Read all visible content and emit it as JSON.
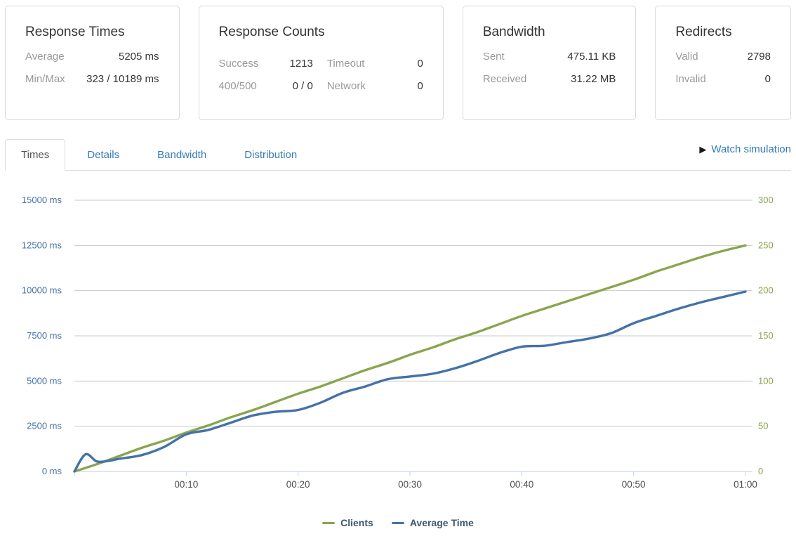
{
  "cards": {
    "response_times": {
      "title": "Response Times",
      "rows": [
        {
          "label": "Average",
          "value": "5205 ms"
        },
        {
          "label": "Min/Max",
          "value": "323 / 10189 ms"
        }
      ]
    },
    "response_counts": {
      "title": "Response Counts",
      "left_rows": [
        {
          "label": "Success",
          "value": "1213"
        },
        {
          "label": "400/500",
          "value": "0 / 0"
        }
      ],
      "right_rows": [
        {
          "label": "Timeout",
          "value": "0"
        },
        {
          "label": "Network",
          "value": "0"
        }
      ]
    },
    "bandwidth": {
      "title": "Bandwidth",
      "rows": [
        {
          "label": "Sent",
          "value": "475.11 KB"
        },
        {
          "label": "Received",
          "value": "31.22 MB"
        }
      ]
    },
    "redirects": {
      "title": "Redirects",
      "rows": [
        {
          "label": "Valid",
          "value": "2798"
        },
        {
          "label": "Invalid",
          "value": "0"
        }
      ]
    }
  },
  "tabs": {
    "items": [
      {
        "label": "Times",
        "active": true
      },
      {
        "label": "Details",
        "active": false
      },
      {
        "label": "Bandwidth",
        "active": false
      },
      {
        "label": "Distribution",
        "active": false
      }
    ],
    "watch": {
      "icon": "▶",
      "label": "Watch simulation"
    }
  },
  "chart_data": {
    "type": "line",
    "title": "",
    "x_axis": {
      "unit": "time",
      "range_minutes": [
        0,
        60
      ],
      "tick_minutes": [
        10,
        20,
        30,
        40,
        50,
        60
      ],
      "ticks": [
        "00:10",
        "00:20",
        "00:30",
        "00:40",
        "00:50",
        "01:00"
      ],
      "label_color": "#4d4d4d"
    },
    "left_axis": {
      "min": 0,
      "max": 15000,
      "tick_step": 2500,
      "tick_labels": [
        "0 ms",
        "2500 ms",
        "5000 ms",
        "7500 ms",
        "10000 ms",
        "12500 ms",
        "15000 ms"
      ],
      "label_color": "#4572a7"
    },
    "right_axis": {
      "min": 0,
      "max": 300,
      "tick_step": 50,
      "tick_labels": [
        "0",
        "50",
        "100",
        "150",
        "200",
        "250",
        "300"
      ],
      "label_color": "#89a54e"
    },
    "grid": {
      "color": "#c9c9c9",
      "baseline_color": "#c0d0e0",
      "grid_on": true
    },
    "series": [
      {
        "name": "Clients",
        "axis": "right",
        "color": "#89a54e",
        "x_minutes": [
          0,
          2,
          4,
          6,
          8,
          10,
          12,
          14,
          16,
          18,
          20,
          22,
          24,
          26,
          28,
          30,
          32,
          34,
          36,
          38,
          40,
          42,
          44,
          46,
          48,
          50,
          52,
          54,
          56,
          58,
          60
        ],
        "values": [
          0,
          8,
          17,
          26,
          34,
          43,
          51,
          60,
          68,
          77,
          86,
          94,
          103,
          112,
          120,
          129,
          137,
          146,
          154,
          163,
          172,
          180,
          188,
          196,
          204,
          212,
          221,
          229,
          237,
          244,
          250
        ]
      },
      {
        "name": "Average Time",
        "axis": "left",
        "color": "#4572a7",
        "x_minutes": [
          0,
          1,
          2,
          3,
          4,
          6,
          8,
          10,
          12,
          14,
          16,
          18,
          20,
          22,
          24,
          26,
          28,
          30,
          32,
          34,
          36,
          38,
          40,
          42,
          44,
          46,
          48,
          50,
          52,
          54,
          56,
          58,
          60
        ],
        "values": [
          0,
          950,
          550,
          580,
          700,
          900,
          1350,
          2050,
          2300,
          2700,
          3100,
          3300,
          3400,
          3800,
          4350,
          4700,
          5100,
          5250,
          5400,
          5700,
          6100,
          6550,
          6900,
          6950,
          7150,
          7350,
          7650,
          8200,
          8600,
          9000,
          9350,
          9650,
          9950
        ]
      }
    ],
    "legend": {
      "position": "bottom",
      "items": [
        "Clients",
        "Average Time"
      ],
      "text_color": "#3e576f"
    }
  }
}
